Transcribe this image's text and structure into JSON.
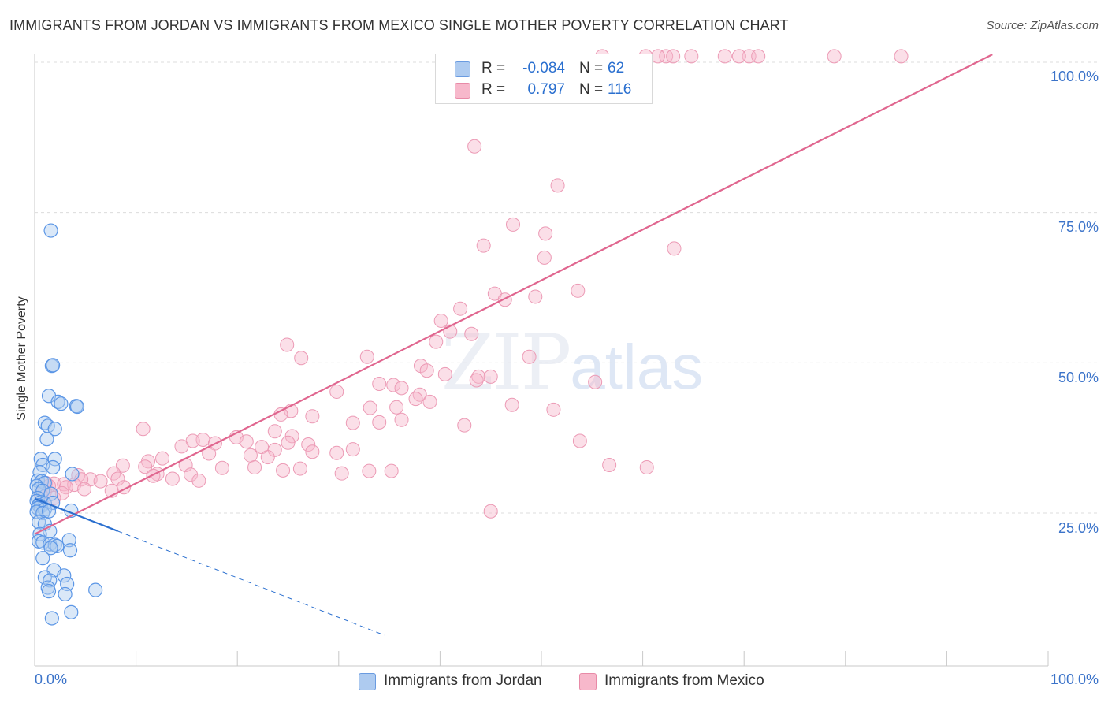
{
  "header": {
    "title": "IMMIGRANTS FROM JORDAN VS IMMIGRANTS FROM MEXICO SINGLE MOTHER POVERTY CORRELATION CHART",
    "source": "Source: ZipAtlas.com"
  },
  "watermark": {
    "zip": "ZIP",
    "atlas": "atlas"
  },
  "legend_top": {
    "rows": [
      {
        "r_label": "R =",
        "r_value": "-0.084",
        "n_label": "N =",
        "n_value": "62",
        "color": "#aecbf0",
        "border": "#6a9be0"
      },
      {
        "r_label": "R =",
        "r_value": "0.797",
        "n_label": "N =",
        "n_value": "116",
        "color": "#f7b8cb",
        "border": "#e88aa7"
      }
    ]
  },
  "bottom_legend": {
    "items": [
      {
        "label": "Immigrants from Jordan",
        "color": "#aecbf0",
        "border": "#6a9be0"
      },
      {
        "label": "Immigrants from Mexico",
        "color": "#f7b8cb",
        "border": "#e88aa7"
      }
    ]
  },
  "axes": {
    "ylabel": "Single Mother Poverty",
    "x_tick_labels": [
      "0.0%",
      "100.0%"
    ],
    "y_tick_labels": [
      "25.0%",
      "50.0%",
      "75.0%",
      "100.0%"
    ]
  },
  "chart_data": {
    "type": "scatter",
    "title": "IMMIGRANTS FROM JORDAN VS IMMIGRANTS FROM MEXICO SINGLE MOTHER POVERTY CORRELATION CHART",
    "xlabel": "",
    "ylabel": "Single Mother Poverty",
    "xlim": [
      0,
      100
    ],
    "ylim": [
      0,
      101
    ],
    "x_ticks": [
      0,
      100
    ],
    "y_ticks": [
      25,
      50,
      75,
      100
    ],
    "grid": true,
    "legend_position": "bottom",
    "colors": {
      "jordan": "#5b96e6",
      "mexico": "#ef93b2",
      "jordan_line": "#2a6fcf",
      "mexico_line": "#e0668f"
    },
    "series": [
      {
        "name": "Immigrants from Jordan",
        "r": -0.084,
        "n": 62,
        "trend": {
          "x0": 0,
          "y0": 27.4,
          "x1": 8.2,
          "y1": 22.0,
          "dash_to_x": 34.5
        },
        "points": [
          [
            1.6,
            72
          ],
          [
            1.7,
            49.5
          ],
          [
            1.8,
            49.6
          ],
          [
            1.4,
            44.5
          ],
          [
            2.3,
            43.5
          ],
          [
            2.6,
            43.2
          ],
          [
            4.1,
            42.8
          ],
          [
            4.2,
            42.7
          ],
          [
            1.0,
            40.0
          ],
          [
            1.3,
            39.5
          ],
          [
            2.0,
            39.0
          ],
          [
            1.2,
            37.3
          ],
          [
            0.6,
            34.0
          ],
          [
            2.0,
            34.0
          ],
          [
            0.8,
            33.0
          ],
          [
            1.8,
            32.6
          ],
          [
            3.7,
            31.5
          ],
          [
            0.5,
            31.8
          ],
          [
            0.3,
            30.4
          ],
          [
            0.7,
            30.3
          ],
          [
            1.0,
            30.0
          ],
          [
            0.2,
            29.5
          ],
          [
            0.4,
            29.0
          ],
          [
            0.8,
            28.7
          ],
          [
            1.6,
            28.2
          ],
          [
            0.3,
            27.5
          ],
          [
            0.2,
            27.0
          ],
          [
            0.6,
            26.8
          ],
          [
            1.0,
            26.6
          ],
          [
            1.8,
            26.7
          ],
          [
            0.4,
            26.3
          ],
          [
            0.6,
            26.1
          ],
          [
            0.3,
            25.8
          ],
          [
            1.0,
            25.6
          ],
          [
            0.2,
            25.2
          ],
          [
            0.8,
            25.0
          ],
          [
            1.4,
            25.3
          ],
          [
            3.6,
            25.4
          ],
          [
            0.4,
            23.5
          ],
          [
            1.0,
            23.2
          ],
          [
            1.5,
            22.0
          ],
          [
            0.5,
            21.5
          ],
          [
            0.4,
            20.3
          ],
          [
            0.8,
            20.1
          ],
          [
            3.4,
            20.5
          ],
          [
            1.5,
            19.8
          ],
          [
            2.0,
            19.7
          ],
          [
            2.2,
            19.5
          ],
          [
            1.6,
            19.2
          ],
          [
            3.5,
            18.8
          ],
          [
            0.8,
            17.5
          ],
          [
            1.9,
            15.5
          ],
          [
            2.9,
            14.6
          ],
          [
            1.0,
            14.3
          ],
          [
            1.5,
            13.8
          ],
          [
            3.2,
            13.2
          ],
          [
            1.3,
            12.6
          ],
          [
            1.4,
            12.0
          ],
          [
            6.0,
            12.2
          ],
          [
            3.0,
            11.5
          ],
          [
            3.6,
            8.5
          ],
          [
            1.7,
            7.5
          ]
        ]
      },
      {
        "name": "Immigrants from Mexico",
        "r": 0.797,
        "n": 116,
        "trend": {
          "x0": 0,
          "y0": 21.5,
          "x1": 94.5,
          "y1": 101.3
        },
        "points": [
          [
            56.0,
            101
          ],
          [
            70.5,
            101
          ],
          [
            71.4,
            101
          ],
          [
            60.3,
            101
          ],
          [
            62.3,
            101
          ],
          [
            64.8,
            101
          ],
          [
            68.1,
            101
          ],
          [
            78.9,
            101
          ],
          [
            85.5,
            101
          ],
          [
            61.5,
            101
          ],
          [
            63.0,
            101
          ],
          [
            69.5,
            101
          ],
          [
            43.4,
            86.0
          ],
          [
            51.6,
            79.5
          ],
          [
            47.2,
            73.0
          ],
          [
            50.4,
            71.5
          ],
          [
            44.3,
            69.5
          ],
          [
            50.3,
            67.5
          ],
          [
            63.1,
            69.0
          ],
          [
            53.6,
            62.0
          ],
          [
            45.4,
            61.5
          ],
          [
            49.4,
            61.0
          ],
          [
            46.4,
            60.5
          ],
          [
            42.0,
            59.0
          ],
          [
            40.1,
            57.0
          ],
          [
            41.0,
            55.2
          ],
          [
            43.1,
            54.8
          ],
          [
            39.6,
            53.5
          ],
          [
            24.9,
            53.0
          ],
          [
            32.8,
            51.0
          ],
          [
            48.8,
            51.0
          ],
          [
            26.3,
            50.8
          ],
          [
            38.1,
            49.5
          ],
          [
            38.7,
            48.7
          ],
          [
            40.5,
            48.1
          ],
          [
            43.8,
            47.7
          ],
          [
            45.0,
            47.7
          ],
          [
            43.6,
            47.1
          ],
          [
            55.3,
            46.8
          ],
          [
            34.0,
            46.5
          ],
          [
            35.4,
            46.3
          ],
          [
            36.2,
            45.8
          ],
          [
            29.8,
            45.2
          ],
          [
            38.0,
            44.7
          ],
          [
            37.6,
            44.0
          ],
          [
            39.0,
            43.5
          ],
          [
            33.1,
            42.5
          ],
          [
            35.7,
            42.6
          ],
          [
            47.1,
            43.0
          ],
          [
            51.2,
            42.2
          ],
          [
            25.3,
            42.0
          ],
          [
            24.3,
            41.4
          ],
          [
            27.4,
            41.1
          ],
          [
            36.2,
            40.5
          ],
          [
            31.4,
            40.0
          ],
          [
            34.0,
            40.1
          ],
          [
            42.4,
            39.6
          ],
          [
            10.7,
            39.0
          ],
          [
            23.7,
            38.6
          ],
          [
            25.4,
            37.8
          ],
          [
            19.9,
            37.6
          ],
          [
            20.9,
            36.9
          ],
          [
            25.0,
            36.7
          ],
          [
            16.6,
            37.2
          ],
          [
            15.6,
            37.0
          ],
          [
            17.8,
            36.6
          ],
          [
            27.0,
            36.4
          ],
          [
            14.5,
            36.1
          ],
          [
            22.4,
            36.0
          ],
          [
            23.7,
            35.5
          ],
          [
            27.4,
            35.2
          ],
          [
            29.8,
            35.0
          ],
          [
            31.4,
            35.6
          ],
          [
            17.2,
            34.9
          ],
          [
            21.3,
            34.6
          ],
          [
            23.0,
            34.3
          ],
          [
            12.6,
            34.1
          ],
          [
            11.2,
            33.6
          ],
          [
            14.9,
            33.0
          ],
          [
            8.7,
            32.9
          ],
          [
            10.9,
            32.7
          ],
          [
            18.5,
            32.5
          ],
          [
            21.7,
            32.6
          ],
          [
            26.2,
            32.4
          ],
          [
            33.0,
            32.0
          ],
          [
            35.2,
            32.0
          ],
          [
            56.7,
            33.0
          ],
          [
            24.5,
            32.1
          ],
          [
            30.3,
            31.6
          ],
          [
            7.8,
            31.6
          ],
          [
            12.1,
            31.5
          ],
          [
            15.4,
            31.4
          ],
          [
            11.7,
            31.2
          ],
          [
            13.6,
            30.7
          ],
          [
            16.2,
            30.4
          ],
          [
            4.3,
            31.3
          ],
          [
            5.5,
            30.6
          ],
          [
            8.2,
            30.7
          ],
          [
            4.6,
            30.6
          ],
          [
            6.5,
            30.3
          ],
          [
            1.1,
            30.0
          ],
          [
            1.9,
            29.9
          ],
          [
            2.9,
            29.8
          ],
          [
            3.9,
            29.7
          ],
          [
            1.4,
            29.5
          ],
          [
            3.1,
            29.3
          ],
          [
            4.9,
            29.0
          ],
          [
            7.6,
            28.7
          ],
          [
            1.0,
            28.5
          ],
          [
            0.6,
            28.2
          ],
          [
            2.7,
            28.3
          ],
          [
            1.9,
            27.5
          ],
          [
            45.0,
            25.3
          ],
          [
            53.8,
            37.0
          ],
          [
            60.4,
            32.6
          ],
          [
            8.8,
            29.3
          ]
        ]
      }
    ]
  }
}
